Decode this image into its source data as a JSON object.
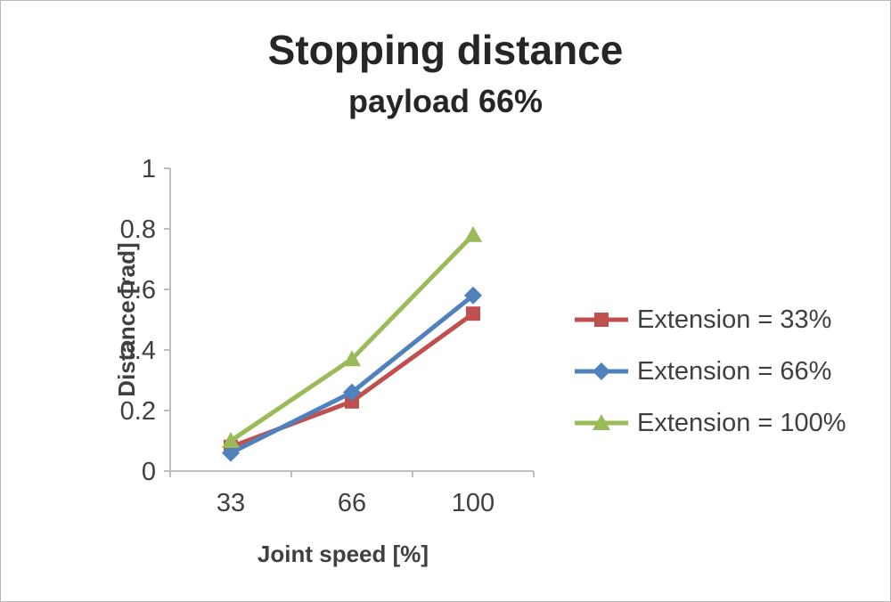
{
  "chart_data": {
    "type": "line",
    "title": "Stopping distance",
    "subtitle": "payload 66%",
    "xlabel": "Joint speed [%]",
    "ylabel": "Distance [rad]",
    "categories": [
      "33",
      "66",
      "100"
    ],
    "ylim": [
      0,
      1
    ],
    "yticks": [
      0,
      0.2,
      0.4,
      0.6,
      0.8,
      1
    ],
    "ytick_labels": [
      "0",
      "0.2",
      "0.4",
      "0.6",
      "0.8",
      "1"
    ],
    "grid": false,
    "legend_position": "right",
    "axis_color": "#bfbfbf",
    "text_color": "#404040",
    "series": [
      {
        "name": "Extension = 33%",
        "color": "#c0504d",
        "marker": "square",
        "values": [
          0.08,
          0.23,
          0.52
        ]
      },
      {
        "name": "Extension = 66%",
        "color": "#4f81bd",
        "marker": "diamond",
        "values": [
          0.06,
          0.26,
          0.58
        ]
      },
      {
        "name": "Extension = 100%",
        "color": "#9bbb59",
        "marker": "triangle",
        "values": [
          0.1,
          0.37,
          0.78
        ]
      }
    ]
  }
}
